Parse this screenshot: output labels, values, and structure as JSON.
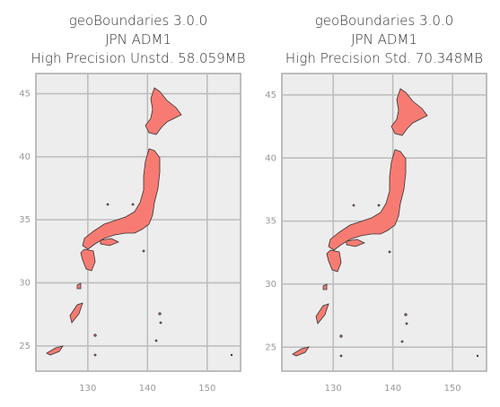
{
  "chart_data": [
    {
      "type": "map",
      "title": [
        "geoBoundaries 3.0.0",
        "JPN ADM1",
        "High Precision Unstd. 58.059MB"
      ],
      "xlim": [
        121.3,
        155.6
      ],
      "ylim": [
        23.0,
        46.6
      ],
      "xticks": [
        130,
        140,
        150
      ],
      "yticks": [
        25,
        30,
        35,
        40,
        45
      ],
      "grid": true,
      "color": "#f77b72"
    },
    {
      "type": "map",
      "title": [
        "geoBoundaries 3.0.0",
        "JPN ADM1",
        "High Precision Std. 70.348MB"
      ],
      "xlim": [
        121.4,
        155.7
      ],
      "ylim": [
        23.1,
        46.7
      ],
      "xticks": [
        130,
        140,
        150
      ],
      "yticks": [
        25,
        30,
        35,
        40,
        45
      ],
      "grid": true,
      "color": "#f77b72"
    }
  ]
}
